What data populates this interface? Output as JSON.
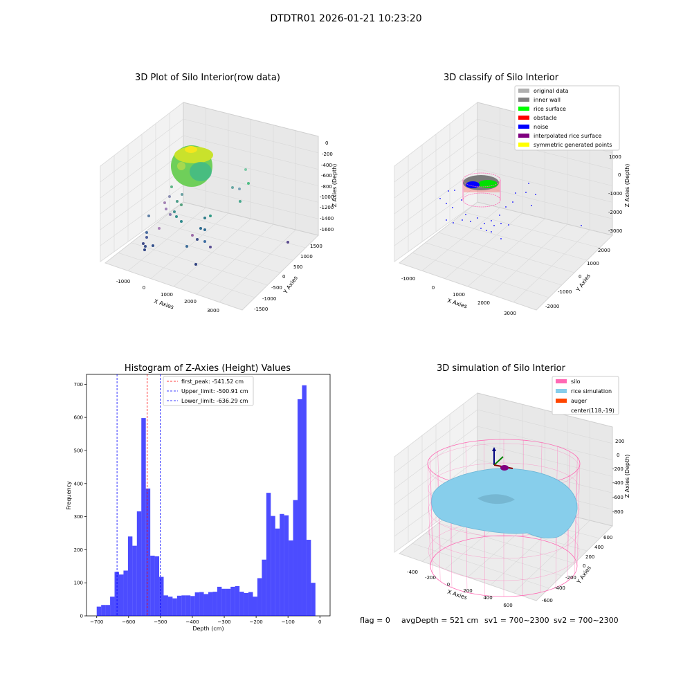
{
  "figure": {
    "suptitle": "DTDTR01 2026-01-21 10:23:20",
    "footer": {
      "flag": "flag = 0",
      "avg": "avgDepth = 521 cm",
      "sv1": "sv1 = 700~2300",
      "sv2": "sv2 = 700~2300"
    }
  },
  "chart_data": [
    {
      "type": "scatter",
      "subtype": "3d",
      "title": "3D Plot of Silo Interior(row data)",
      "xlabel": "X Axies",
      "ylabel": "Y Axies",
      "zlabel": "Z Axies (Depth)",
      "x_ticks": [
        "-1000",
        "0",
        "1000",
        "2000",
        "3000"
      ],
      "y_ticks": [
        "-1500",
        "-1000",
        "-500",
        "0",
        "500",
        "1000",
        "1500"
      ],
      "z_ticks": [
        "0",
        "-200",
        "-400",
        "-600",
        "-800",
        "-1000",
        "-1200",
        "-1400",
        "-1600"
      ],
      "colormap": "viridis"
    },
    {
      "type": "scatter",
      "subtype": "3d",
      "title": "3D classify of Silo Interior",
      "xlabel": "X Axies",
      "ylabel": "Y Axies",
      "zlabel": "Z Axies (Depth)",
      "x_ticks": [
        "-1000",
        "0",
        "1000",
        "2000",
        "3000"
      ],
      "y_ticks": [
        "-2000",
        "-1000",
        "0",
        "1000",
        "2000"
      ],
      "z_ticks": [
        "1000",
        "0",
        "-1000",
        "-2000",
        "-3000"
      ],
      "legend": [
        {
          "label": "original data",
          "color": "#b0b0b0"
        },
        {
          "label": "inner wall",
          "color": "#808080"
        },
        {
          "label": "rice surface",
          "color": "#00ff00"
        },
        {
          "label": "obstacle",
          "color": "#ff0000"
        },
        {
          "label": "noise",
          "color": "#0000ff"
        },
        {
          "label": "interpolated rice surface",
          "color": "#800080"
        },
        {
          "label": "symmetric generated points",
          "color": "#ffff00"
        }
      ],
      "legend_position": "top-right"
    },
    {
      "type": "bar",
      "subtype": "histogram",
      "title": "Histogram of Z-Axies (Height) Values",
      "xlabel": "Depth (cm)",
      "ylabel": "Frequency",
      "xlim": [
        -732,
        32
      ],
      "ylim": [
        0,
        730
      ],
      "x_ticks": [
        -700,
        -600,
        -500,
        -400,
        -300,
        -200,
        -100,
        0
      ],
      "y_ticks": [
        0,
        100,
        200,
        300,
        400,
        500,
        600,
        700
      ],
      "bin_start": -700,
      "bin_width": 14,
      "values": [
        28,
        33,
        33,
        58,
        133,
        125,
        137,
        240,
        212,
        316,
        598,
        385,
        182,
        180,
        118,
        62,
        58,
        53,
        61,
        62,
        62,
        60,
        71,
        72,
        66,
        72,
        73,
        88,
        82,
        82,
        88,
        90,
        73,
        69,
        72,
        58,
        114,
        170,
        372,
        302,
        264,
        308,
        304,
        228,
        350,
        655,
        697,
        230,
        100
      ],
      "bar_color": "#0000ff",
      "lines": [
        {
          "label": "first_peak: -541.52 cm",
          "x": -541.52,
          "color": "#ff0000"
        },
        {
          "label": "Upper_limit: -500.91 cm",
          "x": -500.91,
          "color": "#0000ff"
        },
        {
          "label": "Lower_limit: -636.29 cm",
          "x": -636.29,
          "color": "#0000ff"
        }
      ],
      "legend_position": "upper-center"
    },
    {
      "type": "scatter",
      "subtype": "3d-surface",
      "title": "3D simulation of Silo Interior",
      "xlabel": "X Axies",
      "ylabel": "Y Axies",
      "zlabel": "Z Axies (Depth)",
      "x_ticks": [
        "-400",
        "-200",
        "0",
        "200",
        "400",
        "600"
      ],
      "y_ticks": [
        "-600",
        "-400",
        "-200",
        "0",
        "200",
        "400",
        "600"
      ],
      "z_ticks": [
        "200",
        "0",
        "-200",
        "-400",
        "-600",
        "-800"
      ],
      "legend": [
        {
          "label": "silo",
          "color": "#ff69b4"
        },
        {
          "label": "rice simulation",
          "color": "#87ceeb"
        },
        {
          "label": "auger",
          "color": "#ff4500"
        },
        {
          "label": "center(118,-19)",
          "color": ""
        }
      ],
      "legend_position": "top-right"
    }
  ]
}
